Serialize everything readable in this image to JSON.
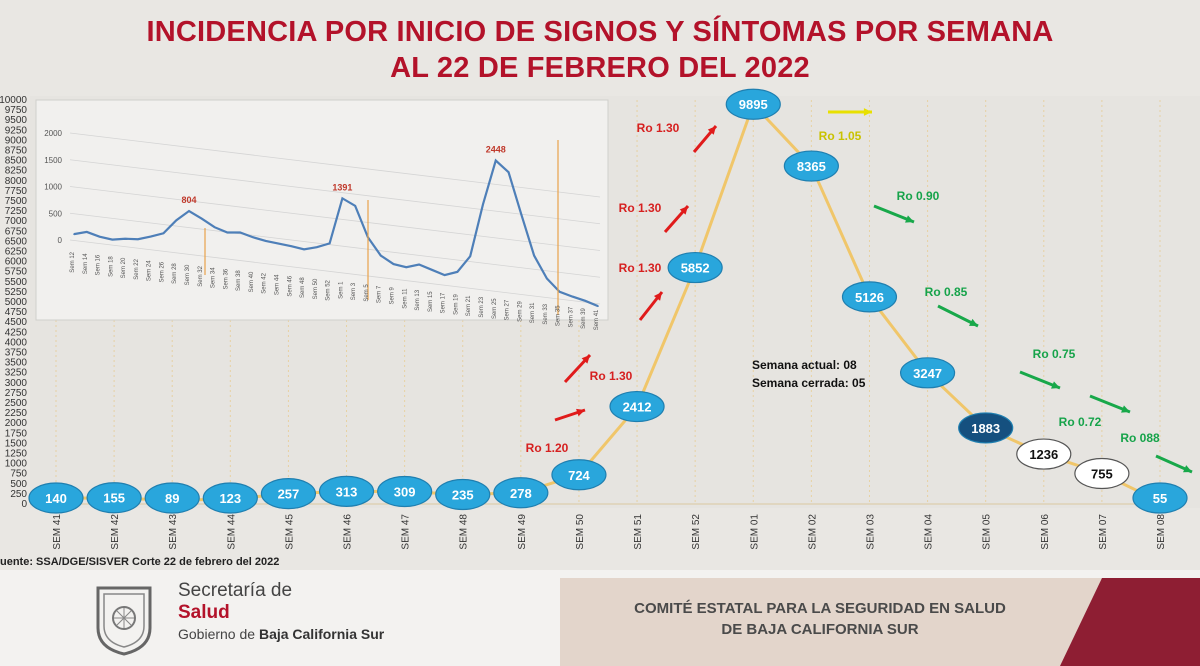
{
  "title_line1": "INCIDENCIA POR INICIO DE SIGNOS Y SÍNTOMAS POR SEMANA",
  "title_line2": "AL 22 DE FEBRERO DEL 2022",
  "source": "uente: SSA/DGE/SISVER Corte 22 de febrero del 2022",
  "notes": {
    "current_week": "Semana actual: 08",
    "closed_week": "Semana cerrada: 05"
  },
  "footer": {
    "brand_line1": "Secretaría de",
    "brand_line2": "Salud",
    "brand_line3_a": "Gobierno de ",
    "brand_line3_b": "Baja California Sur",
    "committee_line1": "COMITÉ ESTATAL PARA LA SEGURIDAD EN SALUD",
    "committee_line2": "DE BAJA CALIFORNIA SUR"
  },
  "colors": {
    "title": "#b3122a",
    "line": "#f0c66a",
    "bubble": "#29a6dc",
    "bubble_dark": "#15507f",
    "arrow_up": "#e01b1b",
    "arrow_flat": "#e8e000",
    "arrow_down": "#18a84a"
  },
  "chart_data": [
    {
      "type": "line",
      "title": "",
      "xlabel": "",
      "ylabel": "",
      "ylim": [
        0,
        10000
      ],
      "ytick_step": 250,
      "categories": [
        "SEM 41",
        "SEM 42",
        "SEM 43",
        "SEM 44",
        "SEM 45",
        "SEM 46",
        "SEM 47",
        "SEM 48",
        "SEM 49",
        "SEM 50",
        "SEM 51",
        "SEM 52",
        "SEM 01",
        "SEM 02",
        "SEM 03",
        "SEM 04",
        "SEM 05",
        "SEM 06",
        "SEM 07",
        "SEM 08"
      ],
      "values": [
        140,
        155,
        89,
        123,
        257,
        313,
        309,
        235,
        278,
        724,
        2412,
        5852,
        9895,
        8365,
        5126,
        3247,
        1883,
        1236,
        755,
        55
      ],
      "bubble_style": [
        "blue",
        "blue",
        "blue",
        "blue",
        "blue",
        "blue",
        "blue",
        "blue",
        "blue",
        "blue",
        "blue",
        "blue",
        "blue",
        "blue",
        "blue",
        "blue",
        "dark",
        "white",
        "white",
        "blue"
      ],
      "ro_annotations": [
        {
          "label": "Ro 1.20",
          "trend": "up"
        },
        {
          "label": "Ro 1.30",
          "trend": "up"
        },
        {
          "label": "Ro 1.30",
          "trend": "up"
        },
        {
          "label": "Ro 1.30",
          "trend": "up"
        },
        {
          "label": "Ro 1.30",
          "trend": "up"
        },
        {
          "label": "Ro 1.05",
          "trend": "flat"
        },
        {
          "label": "Ro 0.90",
          "trend": "down"
        },
        {
          "label": "Ro 0.85",
          "trend": "down"
        },
        {
          "label": "Ro 0.75",
          "trend": "down"
        },
        {
          "label": "Ro 0.72",
          "trend": "down"
        },
        {
          "label": "Ro 088",
          "trend": "down"
        }
      ]
    },
    {
      "type": "line",
      "title": "",
      "ylim": [
        0,
        2500
      ],
      "yticks": [
        0,
        500,
        1000,
        1500,
        2000
      ],
      "categories": [
        "Sem 12",
        "Sem 14",
        "Sem 16",
        "Sem 18",
        "Sem 20",
        "Sem 22",
        "Sem 24",
        "Sem 26",
        "Sem 28",
        "Sem 30",
        "Sem 32",
        "Sem 34",
        "Sem 36",
        "Sem 38",
        "Sem 40",
        "Sem 42",
        "Sem 44",
        "Sem 46",
        "Sem 48",
        "Sem 50",
        "Sem 52",
        "Sem 1",
        "Sem 3",
        "Sem 5",
        "Sem 7",
        "Sem 9",
        "Sem 11",
        "Sem 13",
        "Sem 15",
        "Sem 17",
        "Sem 19",
        "Sem 21",
        "Sem 23",
        "Sem 25",
        "Sem 27",
        "Sem 29",
        "Sem 31",
        "Sem 33",
        "Sem 35",
        "Sem 37",
        "Sem 39",
        "Sem 41"
      ],
      "values": [
        110,
        180,
        120,
        95,
        140,
        160,
        240,
        330,
        600,
        804,
        690,
        560,
        490,
        520,
        460,
        420,
        400,
        380,
        350,
        420,
        520,
        1391,
        1280,
        720,
        410,
        280,
        250,
        330,
        260,
        190,
        280,
        600,
        1600,
        2448,
        2260,
        1500,
        760,
        360,
        140,
        80,
        30,
        -40
      ],
      "peak_labels": [
        {
          "index": 9,
          "label": "804"
        },
        {
          "index": 21,
          "label": "1391"
        },
        {
          "index": 33,
          "label": "2448"
        }
      ]
    }
  ]
}
